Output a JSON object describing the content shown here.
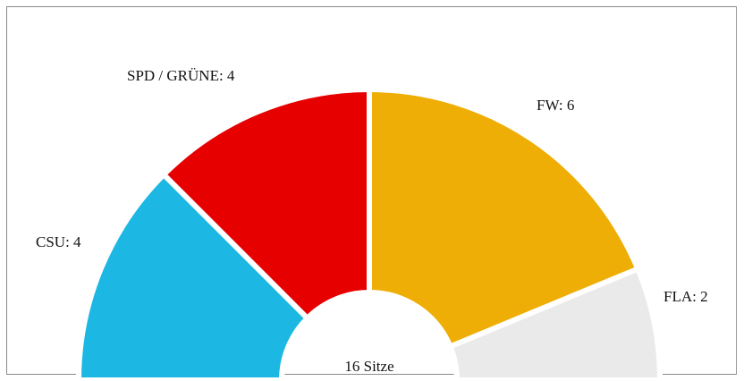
{
  "chart_data": {
    "type": "pie",
    "subtype": "half-donut (parliament seats)",
    "total_label": "16 Sitze",
    "total": 16,
    "series": [
      {
        "name": "CSU",
        "label": "CSU: 4",
        "value": 4,
        "color": "#1cb8e3"
      },
      {
        "name": "SPD / GRÜNE",
        "label": "SPD / GRÜNE: 4",
        "value": 4,
        "color": "#e60000"
      },
      {
        "name": "FW",
        "label": "FW: 6",
        "value": 6,
        "color": "#eeae06"
      },
      {
        "name": "FLA",
        "label": "FLA: 2",
        "value": 2,
        "color": "#eaeaea"
      }
    ]
  }
}
